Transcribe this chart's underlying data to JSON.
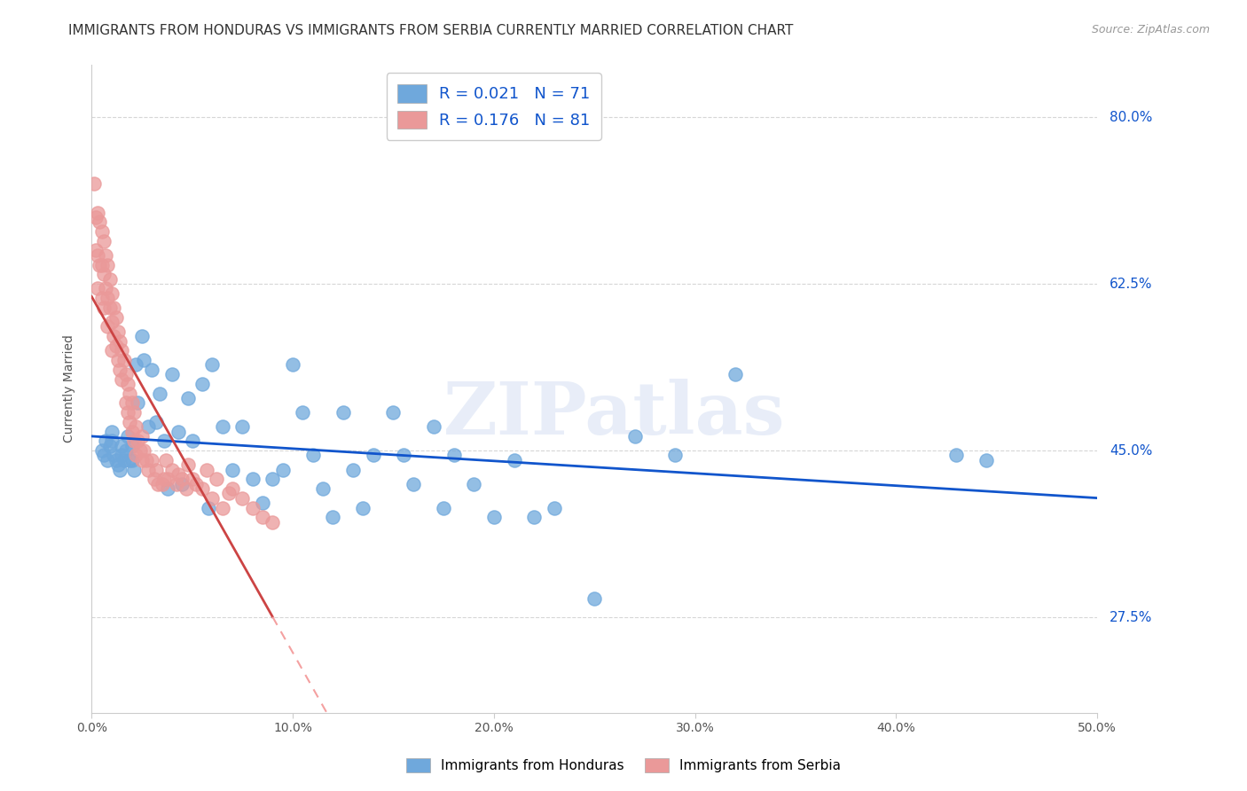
{
  "title": "IMMIGRANTS FROM HONDURAS VS IMMIGRANTS FROM SERBIA CURRENTLY MARRIED CORRELATION CHART",
  "source": "Source: ZipAtlas.com",
  "xlabel_ticks": [
    "0.0%",
    "10.0%",
    "20.0%",
    "30.0%",
    "40.0%",
    "50.0%"
  ],
  "xlabel_vals": [
    0.0,
    0.1,
    0.2,
    0.3,
    0.4,
    0.5
  ],
  "ylabel": "Currently Married",
  "ylabel_ticks": [
    "27.5%",
    "45.0%",
    "62.5%",
    "80.0%"
  ],
  "ylabel_vals": [
    0.275,
    0.45,
    0.625,
    0.8
  ],
  "xlim": [
    0.0,
    0.5
  ],
  "ylim": [
    0.175,
    0.855
  ],
  "legend_label1": "Immigrants from Honduras",
  "legend_label2": "Immigrants from Serbia",
  "r1": "0.021",
  "n1": "71",
  "r2": "0.176",
  "n2": "81",
  "color1": "#6fa8dc",
  "color2": "#ea9999",
  "trendline1_color": "#1155cc",
  "trendline2_solid_color": "#cc4444",
  "trendline2_dash_color": "#f4a0a0",
  "background_color": "#ffffff",
  "grid_color": "#cccccc",
  "watermark": "ZIPatlas",
  "title_fontsize": 11,
  "axis_label_fontsize": 10,
  "tick_fontsize": 10,
  "honduras_x": [
    0.005,
    0.006,
    0.007,
    0.008,
    0.009,
    0.01,
    0.01,
    0.011,
    0.012,
    0.013,
    0.014,
    0.015,
    0.015,
    0.016,
    0.017,
    0.018,
    0.019,
    0.02,
    0.02,
    0.021,
    0.022,
    0.023,
    0.025,
    0.026,
    0.028,
    0.03,
    0.032,
    0.034,
    0.036,
    0.038,
    0.04,
    0.043,
    0.045,
    0.048,
    0.05,
    0.055,
    0.058,
    0.06,
    0.065,
    0.07,
    0.075,
    0.08,
    0.085,
    0.09,
    0.095,
    0.1,
    0.105,
    0.11,
    0.115,
    0.12,
    0.125,
    0.13,
    0.135,
    0.14,
    0.15,
    0.155,
    0.16,
    0.17,
    0.175,
    0.18,
    0.19,
    0.2,
    0.21,
    0.22,
    0.23,
    0.25,
    0.27,
    0.29,
    0.32,
    0.43,
    0.445
  ],
  "honduras_y": [
    0.45,
    0.445,
    0.46,
    0.44,
    0.455,
    0.47,
    0.46,
    0.445,
    0.44,
    0.435,
    0.43,
    0.445,
    0.455,
    0.44,
    0.45,
    0.465,
    0.44,
    0.455,
    0.44,
    0.43,
    0.54,
    0.5,
    0.57,
    0.545,
    0.475,
    0.535,
    0.48,
    0.51,
    0.46,
    0.41,
    0.53,
    0.47,
    0.415,
    0.505,
    0.46,
    0.52,
    0.39,
    0.54,
    0.475,
    0.43,
    0.475,
    0.42,
    0.395,
    0.42,
    0.43,
    0.54,
    0.49,
    0.445,
    0.41,
    0.38,
    0.49,
    0.43,
    0.39,
    0.445,
    0.49,
    0.445,
    0.415,
    0.475,
    0.39,
    0.445,
    0.415,
    0.38,
    0.44,
    0.38,
    0.39,
    0.295,
    0.465,
    0.445,
    0.53,
    0.445,
    0.44
  ],
  "serbia_x": [
    0.001,
    0.002,
    0.002,
    0.003,
    0.003,
    0.003,
    0.004,
    0.004,
    0.005,
    0.005,
    0.005,
    0.006,
    0.006,
    0.006,
    0.007,
    0.007,
    0.008,
    0.008,
    0.008,
    0.009,
    0.009,
    0.01,
    0.01,
    0.01,
    0.011,
    0.011,
    0.012,
    0.012,
    0.013,
    0.013,
    0.014,
    0.014,
    0.015,
    0.015,
    0.016,
    0.017,
    0.017,
    0.018,
    0.018,
    0.019,
    0.019,
    0.02,
    0.02,
    0.021,
    0.021,
    0.022,
    0.022,
    0.023,
    0.024,
    0.025,
    0.025,
    0.026,
    0.027,
    0.028,
    0.03,
    0.031,
    0.032,
    0.033,
    0.035,
    0.036,
    0.037,
    0.038,
    0.04,
    0.042,
    0.043,
    0.045,
    0.047,
    0.048,
    0.05,
    0.052,
    0.055,
    0.057,
    0.06,
    0.062,
    0.065,
    0.068,
    0.07,
    0.075,
    0.08,
    0.085,
    0.09
  ],
  "serbia_y": [
    0.73,
    0.695,
    0.66,
    0.7,
    0.655,
    0.62,
    0.69,
    0.645,
    0.68,
    0.645,
    0.61,
    0.67,
    0.635,
    0.6,
    0.655,
    0.62,
    0.645,
    0.61,
    0.58,
    0.63,
    0.6,
    0.615,
    0.585,
    0.555,
    0.6,
    0.57,
    0.59,
    0.56,
    0.575,
    0.545,
    0.565,
    0.535,
    0.555,
    0.525,
    0.545,
    0.53,
    0.5,
    0.52,
    0.49,
    0.51,
    0.48,
    0.5,
    0.47,
    0.49,
    0.46,
    0.475,
    0.445,
    0.46,
    0.45,
    0.44,
    0.465,
    0.45,
    0.44,
    0.43,
    0.44,
    0.42,
    0.43,
    0.415,
    0.415,
    0.42,
    0.44,
    0.42,
    0.43,
    0.415,
    0.425,
    0.42,
    0.41,
    0.435,
    0.42,
    0.415,
    0.41,
    0.43,
    0.4,
    0.42,
    0.39,
    0.405,
    0.41,
    0.4,
    0.39,
    0.38,
    0.375
  ]
}
